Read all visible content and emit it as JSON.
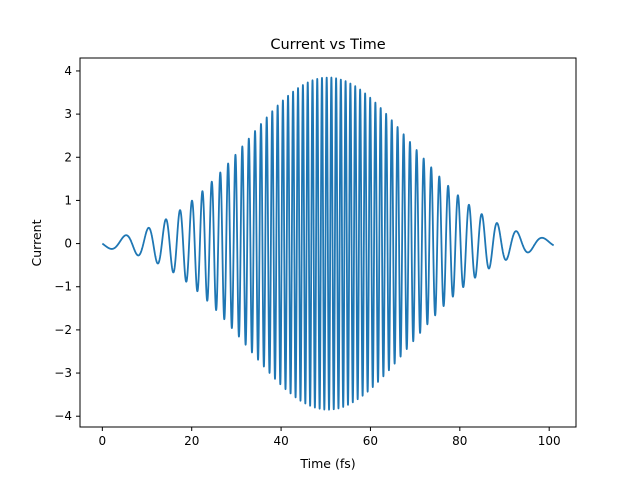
{
  "chart_data": {
    "type": "line",
    "title": "Current vs Time",
    "xlabel": "Time (fs)",
    "ylabel": "Current",
    "xlim": [
      -5,
      106
    ],
    "ylim": [
      -4.25,
      4.3
    ],
    "xticks": [
      0,
      20,
      40,
      60,
      80,
      100
    ],
    "xtick_labels": [
      "0",
      "20",
      "40",
      "60",
      "80",
      "100"
    ],
    "yticks": [
      -4,
      -3,
      -2,
      -1,
      0,
      1,
      2,
      3,
      4
    ],
    "ytick_labels": [
      "−4",
      "−3",
      "−2",
      "−1",
      "0",
      "1",
      "2",
      "3",
      "4"
    ],
    "grid": false,
    "legend": "none",
    "series": [
      {
        "name": "Current",
        "color": "#1f77b4",
        "model": "gaussian-enveloped chirped oscillation",
        "x_range": [
          0,
          101
        ],
        "center": 50.5,
        "peak_amplitude": 3.85,
        "envelope_sigma": 18.5,
        "start_frequency_cycles_per_fs": 0.06,
        "peak_frequency_cycles_per_fs": 0.95,
        "frequency_width": 22
      }
    ]
  },
  "colors": {
    "line": "#1f77b4",
    "axes": "#000000",
    "background": "#ffffff"
  }
}
